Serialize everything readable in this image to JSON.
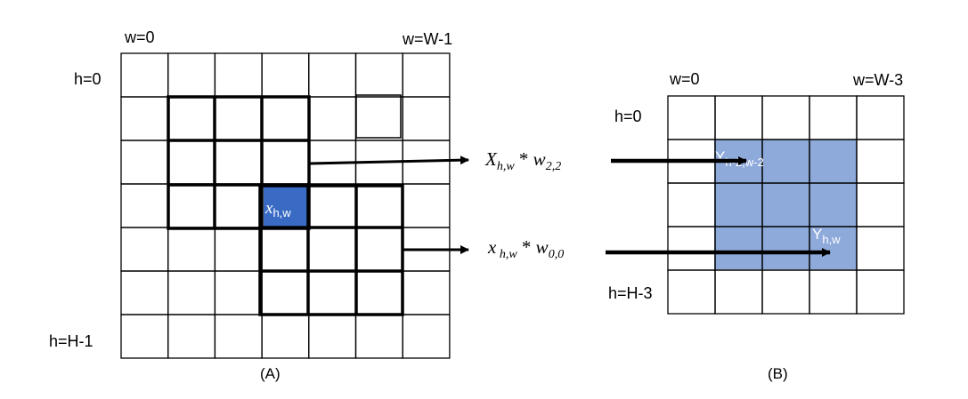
{
  "panel_a": {
    "label_w_first": "w=0",
    "label_w_last": "w=W-1",
    "label_h_first": "h=0",
    "label_h_last": "h=H-1",
    "cell_label": "x",
    "cell_label_sub": "h,w",
    "caption": "(A)",
    "rows": 7,
    "cols": 7
  },
  "equations": {
    "top_var": "X",
    "top_var_sub": "h,w",
    "top_op": " * ",
    "top_w": "w",
    "top_w_sub": "2,2",
    "bottom_var": "x",
    "bottom_var_sub": " h,w",
    "bottom_op": " * ",
    "bottom_w": "w",
    "bottom_w_sub": "0,0"
  },
  "panel_b": {
    "label_w_first": "w=0",
    "label_w_last": "w=W-3",
    "label_h_first": "h=0",
    "label_h_last": "h=H-3",
    "label_top_cell": "Y",
    "label_top_cell_sub": "h-2,w-2",
    "label_bottom_cell": "Y",
    "label_bottom_cell_sub": "h,w",
    "caption": "(B)",
    "rows": 5,
    "cols": 5
  },
  "colors": {
    "highlight_cell": "#3a6bc4",
    "shaded_region": "#8eaadb",
    "grid_line": "#000000",
    "cell_text": "#ffffff"
  }
}
